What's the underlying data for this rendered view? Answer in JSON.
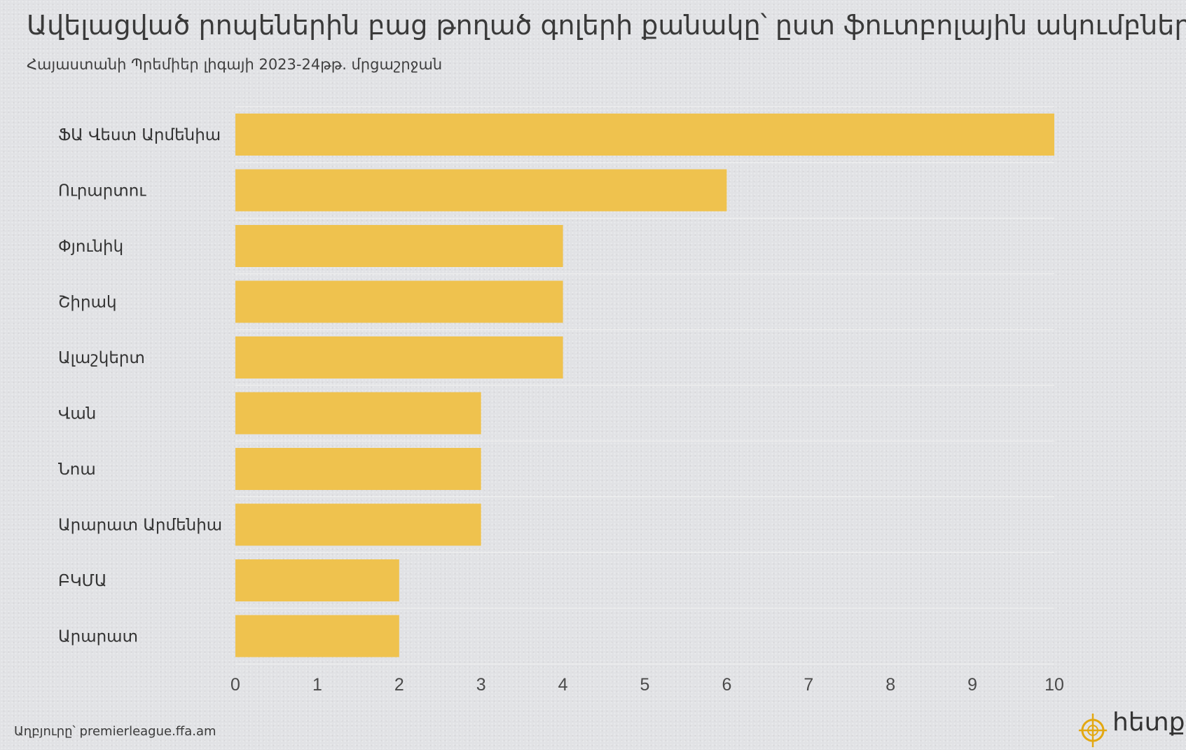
{
  "colors": {
    "bar": "#efc24e",
    "background": "#e1e2e5",
    "gridline": "#f2f2f2",
    "text": "#333333",
    "logo_accent": "#e3a812"
  },
  "header": {
    "title": "Ավելացված րոպեներին բաց թողած գոլերի քանակը՝ ըստ ֆուտբոլային ակումբների",
    "subtitle": "Հայաստանի Պրեմիեր լիգայի 2023-24թթ. մրցաշրջան"
  },
  "footer": {
    "source": "Աղբյուրը՝ premierleague.ffa.am",
    "logo_text": "հետք",
    "logo_icon": "target-icon"
  },
  "chart_data": {
    "type": "bar",
    "orientation": "horizontal",
    "title": "Ավելացված րոպեներին բաց թողած գոլերի քանակը՝ ըստ ֆուտբոլային ակումբների",
    "subtitle": "Հայաստանի Պրեմիեր լիգայի 2023-24թթ. մրցաշրջան",
    "categories": [
      "ՖԱ Վեստ Արմենիա",
      "Ուրարտու",
      "Փյունիկ",
      "Շիրակ",
      "Ալաշկերտ",
      "Վան",
      "Նոա",
      "Արարատ Արմենիա",
      "ԲԿՄԱ",
      "Արարատ"
    ],
    "values": [
      10,
      6,
      4,
      4,
      4,
      3,
      3,
      3,
      2,
      2
    ],
    "xlabel": "",
    "ylabel": "",
    "xlim": [
      0,
      10
    ],
    "ticks": [
      0,
      1,
      2,
      3,
      4,
      5,
      6,
      7,
      8,
      9,
      10
    ],
    "grid": true,
    "legend": "none"
  }
}
